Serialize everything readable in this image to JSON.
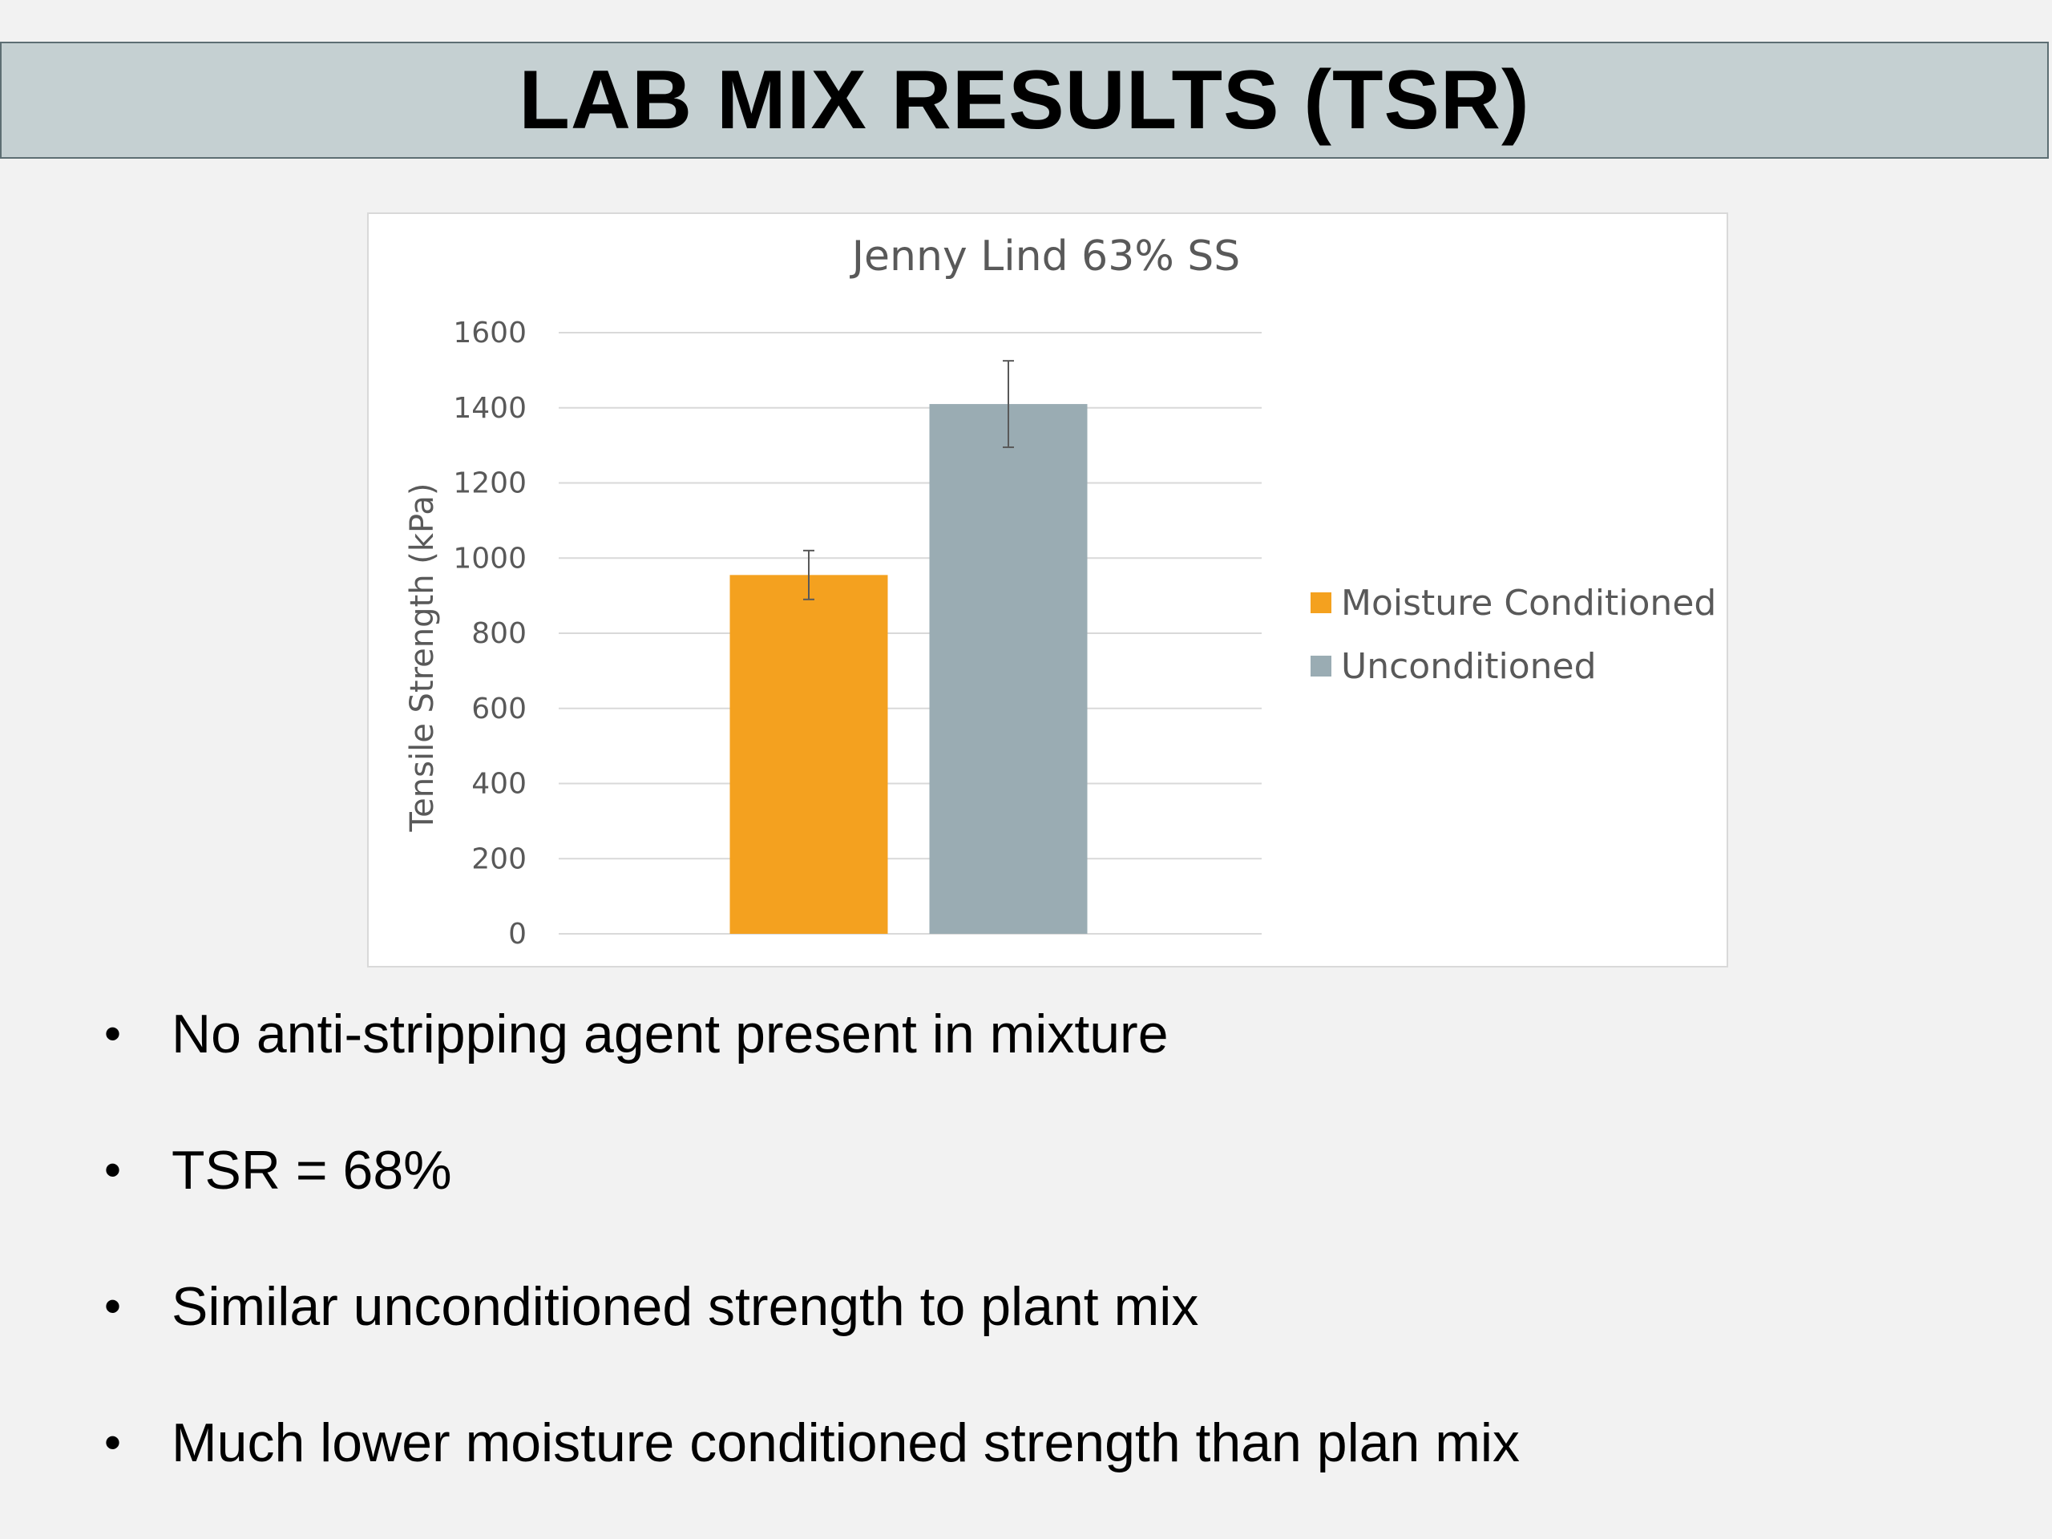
{
  "slide": {
    "title": "LAB MIX RESULTS (TSR)"
  },
  "chart_data": {
    "type": "bar",
    "title": "Jenny Lind 63% SS",
    "xlabel": "",
    "ylabel": "Tensile Strength (kPa)",
    "ylim": [
      0,
      1600
    ],
    "yticks": [
      0,
      200,
      400,
      600,
      800,
      1000,
      1200,
      1400,
      1600
    ],
    "grid": true,
    "legend_position": "right",
    "categories": [
      ""
    ],
    "series": [
      {
        "name": "Moisture Conditioned",
        "values": [
          955
        ],
        "error": [
          65
        ],
        "color": "#f4a11f"
      },
      {
        "name": "Unconditioned",
        "values": [
          1410
        ],
        "error": [
          115
        ],
        "color": "#9aacb3"
      }
    ]
  },
  "bullets": [
    {
      "marker": "•",
      "text": "No anti-stripping agent present in mixture"
    },
    {
      "marker": "•",
      "text": "TSR = 68%"
    },
    {
      "marker": "•",
      "text": "Similar unconditioned strength to plant mix"
    },
    {
      "marker": "•",
      "text": "Much lower moisture conditioned strength than plan mix"
    }
  ]
}
